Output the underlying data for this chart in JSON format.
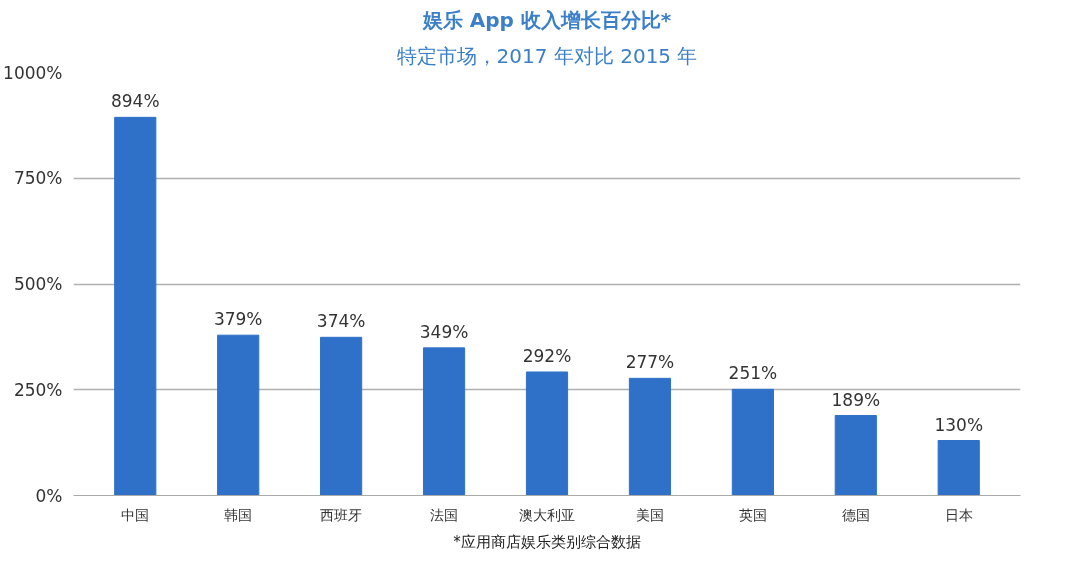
{
  "chart_data": {
    "type": "bar",
    "title": "娱乐 App 收入增长百分比*",
    "subtitle": "特定市场，2017 年对比 2015 年",
    "categories": [
      "中国",
      "韩国",
      "西班牙",
      "法国",
      "澳大利亚",
      "美国",
      "英国",
      "德国",
      "日本"
    ],
    "values": [
      894,
      379,
      374,
      349,
      292,
      277,
      251,
      189,
      130
    ],
    "value_labels": [
      "894%",
      "379%",
      "374%",
      "349%",
      "292%",
      "277%",
      "251%",
      "189%",
      "130%"
    ],
    "color": "#2f71c9",
    "ylim": [
      0,
      1000
    ],
    "yticks": [
      {
        "value": 0,
        "label": "0%"
      },
      {
        "value": 250,
        "label": "250%"
      },
      {
        "value": 500,
        "label": "500%"
      },
      {
        "value": 750,
        "label": "750%"
      },
      {
        "value": 1000,
        "label": "1000%"
      }
    ],
    "grid": "y",
    "annotations": [
      "*应用商店娱乐类别综合数据"
    ]
  }
}
